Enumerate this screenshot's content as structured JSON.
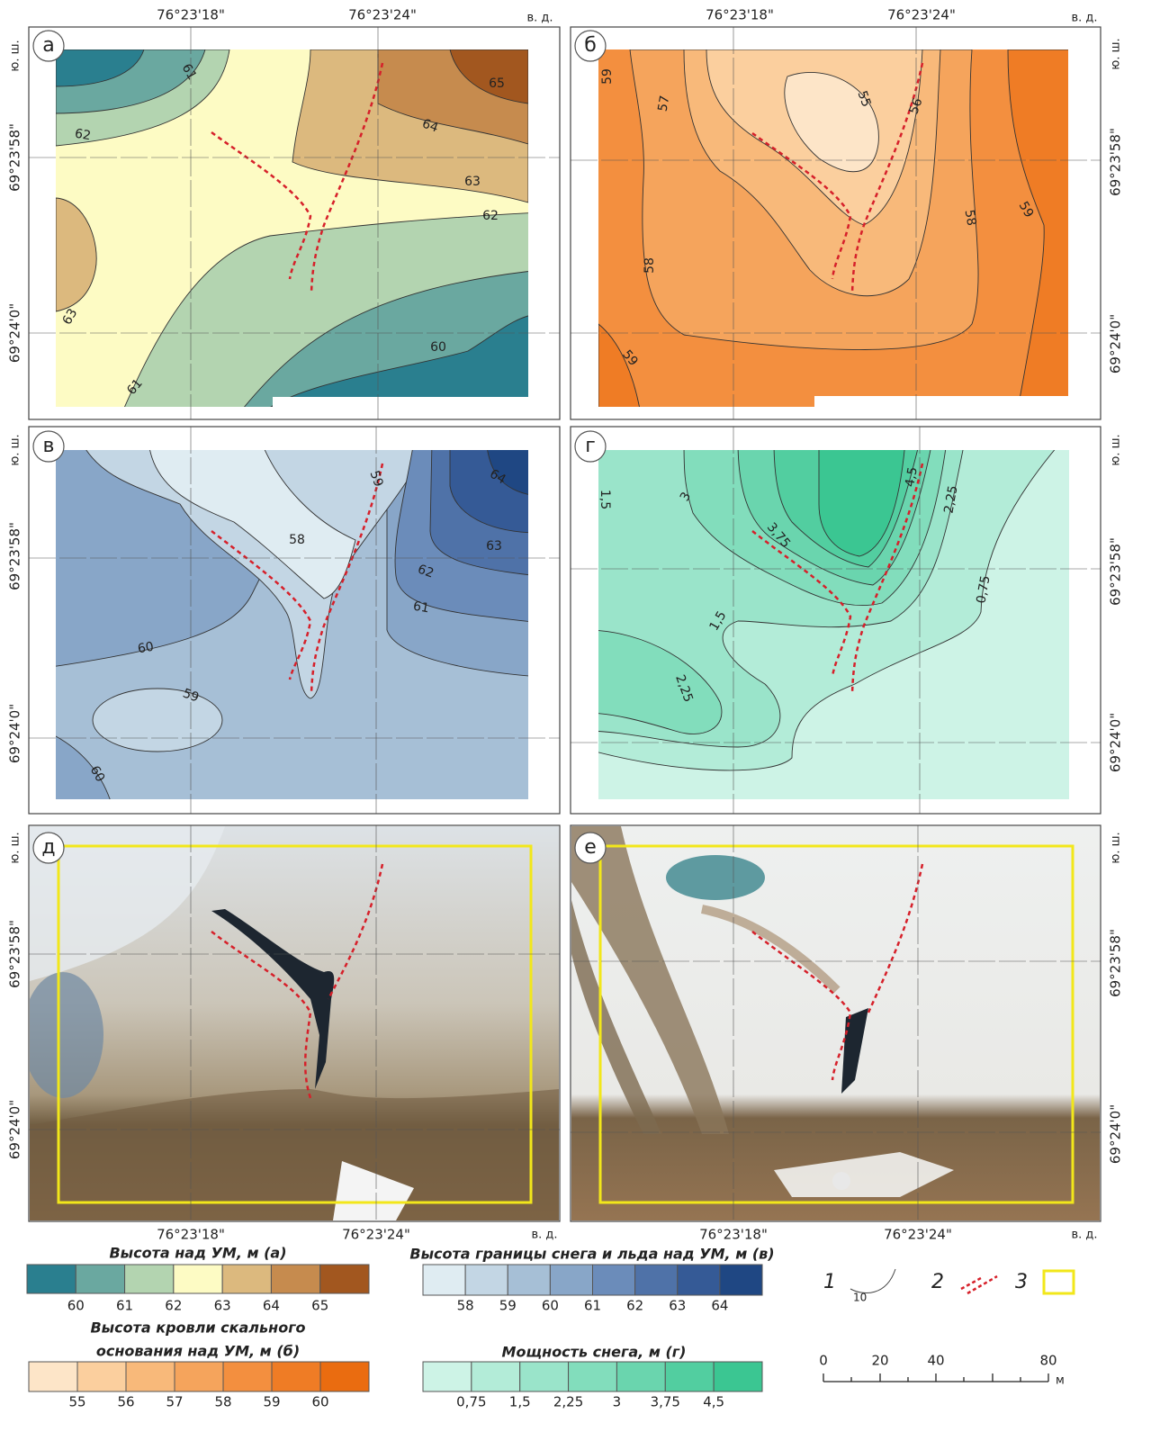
{
  "panels": [
    {
      "letter": "а",
      "lon_labels": [
        "76°23'18\"",
        "76°23'24\""
      ],
      "lon_unit": "в. д.",
      "lat_labels": [
        "69°23'58\"",
        "69°24'0\""
      ],
      "lat_unit": "ю. ш.",
      "contour_labels": [
        "61",
        "65",
        "64",
        "62",
        "63",
        "62",
        "63",
        "60",
        "61"
      ]
    },
    {
      "letter": "б",
      "lon_labels": [
        "76°23'18\"",
        "76°23'24\""
      ],
      "lon_unit": "в. д.",
      "lat_labels": [
        "69°23'58\"",
        "69°24'0\""
      ],
      "lat_unit": "ю. ш.",
      "contour_labels": [
        "59",
        "57",
        "55",
        "56",
        "58",
        "58",
        "59",
        "59"
      ]
    },
    {
      "letter": "в",
      "lat_labels": [
        "69°23'58\"",
        "69°24'0\""
      ],
      "lat_unit": "ю. ш.",
      "contour_labels": [
        "59",
        "64",
        "58",
        "63",
        "62",
        "61",
        "60",
        "59",
        "60"
      ]
    },
    {
      "letter": "г",
      "lat_labels": [
        "69°23'58\"",
        "69°24'0\""
      ],
      "lat_unit": "ю. ш.",
      "contour_labels": [
        "1,5",
        "3",
        "4,5",
        "2,25",
        "3,75",
        "0,75",
        "1,5",
        "2,25"
      ]
    },
    {
      "letter": "д",
      "lon_labels": [
        "76°23'18\"",
        "76°23'24\""
      ],
      "lon_unit": "в. д.",
      "lat_labels": [
        "69°23'58\"",
        "69°24'0\""
      ],
      "lat_unit": "ю. ш."
    },
    {
      "letter": "е",
      "lon_labels": [
        "76°23'18\"",
        "76°23'24\""
      ],
      "lon_unit": "в. д.",
      "lat_labels": [
        "69°23'58\"",
        "69°24'0\""
      ],
      "lat_unit": "ю. ш."
    }
  ],
  "legends": [
    {
      "title": [
        "Высота над УМ, м (а)"
      ],
      "colors": [
        "#2a7f8f",
        "#6aa8a0",
        "#b3d4b0",
        "#fdfbc4",
        "#dcb97e",
        "#c68b4e",
        "#a2571f"
      ],
      "labels": [
        "60",
        "61",
        "62",
        "63",
        "64",
        "65"
      ]
    },
    {
      "title": [
        "Высота границы снега и льда над УМ, м (в)"
      ],
      "colors": [
        "#dfecf2",
        "#c3d6e4",
        "#a6bfd6",
        "#88a6c8",
        "#6b8cba",
        "#4f72a8",
        "#355a96",
        "#1f4783"
      ],
      "labels": [
        "58",
        "59",
        "60",
        "61",
        "62",
        "63",
        "64"
      ]
    },
    {
      "title": [
        "Высота кровли скального",
        "основания над УМ, м (б)"
      ],
      "colors": [
        "#fde5c8",
        "#fbcf9e",
        "#f8b97a",
        "#f5a45c",
        "#f38f3f",
        "#ef7c25",
        "#ea6c10"
      ],
      "labels": [
        "55",
        "56",
        "57",
        "58",
        "59",
        "60"
      ]
    },
    {
      "title": [
        "Мощность снега, м (г)"
      ],
      "colors": [
        "#cdf3e6",
        "#b3ecd8",
        "#9ae4ca",
        "#82ddbc",
        "#6ad5ae",
        "#52cea0",
        "#3bc692"
      ],
      "labels": [
        "0,75",
        "1,5",
        "2,25",
        "3",
        "3,75",
        "4,5"
      ]
    }
  ],
  "symbols": [
    {
      "number": "1",
      "sample": "10"
    },
    {
      "number": "2"
    },
    {
      "number": "3"
    }
  ],
  "scale": {
    "labels": [
      "0",
      "20",
      "40",
      "80"
    ],
    "unit": "м"
  }
}
